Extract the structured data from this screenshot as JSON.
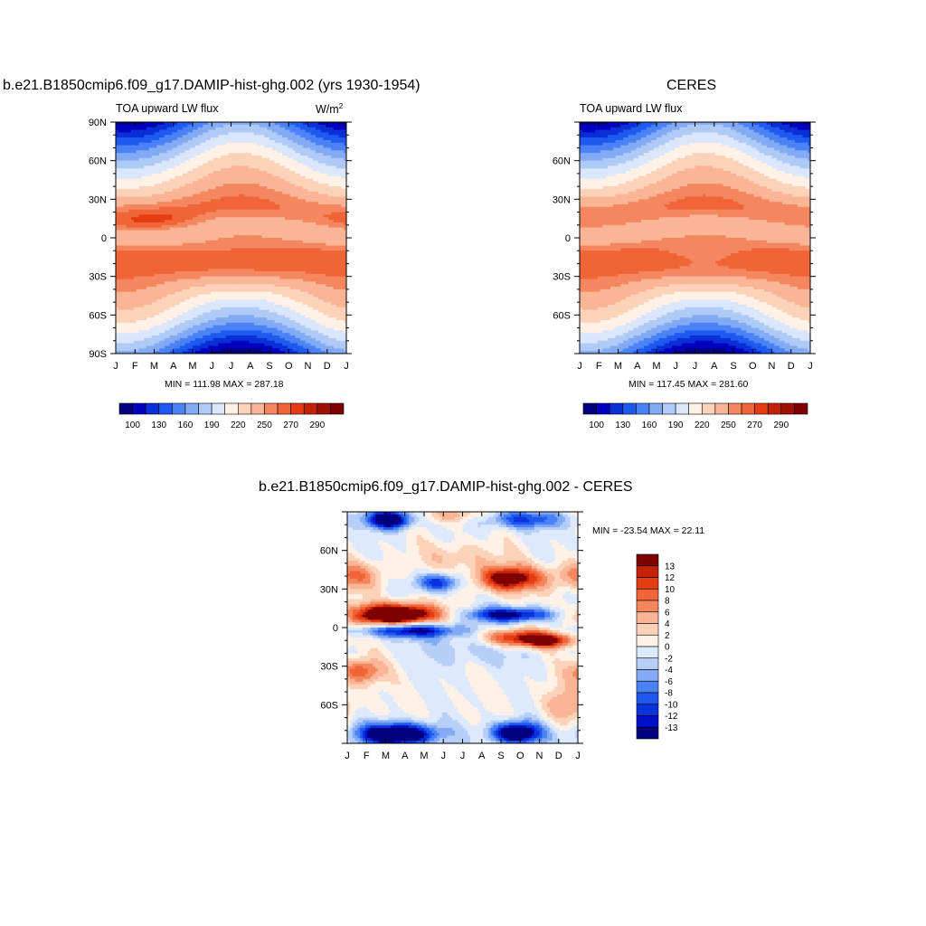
{
  "colors": {
    "seq": [
      "#00007f",
      "#0000be",
      "#0a2fd7",
      "#1e5af0",
      "#4b82f5",
      "#82aaf5",
      "#afcaf7",
      "#dae6fb",
      "#fff1e6",
      "#fcd2b9",
      "#fab496",
      "#f5875f",
      "#f06437",
      "#e63c14",
      "#c32305",
      "#a01000",
      "#7f0000"
    ],
    "div": [
      "#00007f",
      "#0010c8",
      "#0a32df",
      "#2058ee",
      "#4b82f5",
      "#82aaf5",
      "#b7cff8",
      "#dde9fc",
      "#fff1e6",
      "#fcd2b9",
      "#fab496",
      "#f5875f",
      "#f06437",
      "#e63c14",
      "#c32305",
      "#7f0000"
    ]
  },
  "panels": {
    "model": {
      "title": "b.e21.B1850cmip6.f09_g17.DAMIP-hist-ghg.002 (yrs 1930-1954)",
      "left_label": "TOA upward LW flux",
      "units": "W/m",
      "units_sup": "2",
      "stats": "MIN = 111.98 MAX = 287.18"
    },
    "obs": {
      "title": "CERES",
      "left_label": "TOA upward LW flux",
      "stats": "MIN = 117.45 MAX = 281.60"
    },
    "diff": {
      "title": "b.e21.B1850cmip6.f09_g17.DAMIP-hist-ghg.002 - CERES",
      "stats": "MIN = -23.54 MAX =  22.11"
    }
  },
  "axes": {
    "months": [
      "J",
      "F",
      "M",
      "A",
      "M",
      "J",
      "J",
      "A",
      "S",
      "O",
      "N",
      "D",
      "J"
    ],
    "lat_labels_full": [
      "90N",
      "60N",
      "30N",
      "0",
      "30S",
      "60S",
      "90S"
    ],
    "lat_labels_short": [
      "60N",
      "30N",
      "0",
      "30S",
      "60S"
    ]
  },
  "colorbar_abs": {
    "labels": [
      "100",
      "130",
      "160",
      "190",
      "220",
      "250",
      "270",
      "290"
    ]
  },
  "colorbar_diff": {
    "labels": [
      "13",
      "12",
      "10",
      "8",
      "6",
      "4",
      "2",
      "0",
      "-2",
      "-4",
      "-6",
      "-8",
      "-10",
      "-12",
      "-13"
    ]
  },
  "chart_data": [
    {
      "type": "heatmap",
      "title": "b.e21.B1850cmip6.f09_g17.DAMIP-hist-ghg.002 (yrs 1930-1954)",
      "left_label": "TOA upward LW flux",
      "units": "W/m2",
      "x_categories": [
        "J",
        "F",
        "M",
        "A",
        "M",
        "J",
        "J",
        "A",
        "S",
        "O",
        "N",
        "D",
        "J"
      ],
      "y_range": [
        -90,
        90
      ],
      "y_ticks": [
        "90N",
        "60N",
        "30N",
        "0",
        "30S",
        "60S",
        "90S"
      ],
      "min": 111.98,
      "max": 287.18,
      "levels": [
        100,
        130,
        160,
        190,
        220,
        250,
        270,
        290
      ],
      "features": [
        {
          "lat": 18,
          "month": "Mar",
          "value": 285
        },
        {
          "lat": -15,
          "month": "Jul",
          "value": 287
        },
        {
          "lat": -85,
          "month": "Jul",
          "value": 112
        },
        {
          "lat": 85,
          "month": "Jan",
          "value": 170
        }
      ]
    },
    {
      "type": "heatmap",
      "title": "CERES",
      "left_label": "TOA upward LW flux",
      "x_categories": [
        "J",
        "F",
        "M",
        "A",
        "M",
        "J",
        "J",
        "A",
        "S",
        "O",
        "N",
        "D",
        "J"
      ],
      "y_range": [
        -90,
        90
      ],
      "y_ticks": [
        "60N",
        "30N",
        "0",
        "30S",
        "60S"
      ],
      "min": 117.45,
      "max": 281.6,
      "levels": [
        100,
        130,
        160,
        190,
        220,
        250,
        270,
        290
      ],
      "features": [
        {
          "lat": 20,
          "month": "Jan",
          "value": 280
        },
        {
          "lat": -15,
          "month": "Jul",
          "value": 281
        },
        {
          "lat": -85,
          "month": "Jul",
          "value": 118
        },
        {
          "lat": 85,
          "month": "Jan",
          "value": 175
        }
      ]
    },
    {
      "type": "heatmap",
      "title": "b.e21.B1850cmip6.f09_g17.DAMIP-hist-ghg.002 - CERES",
      "x_categories": [
        "J",
        "F",
        "M",
        "A",
        "M",
        "J",
        "J",
        "A",
        "S",
        "O",
        "N",
        "D",
        "J"
      ],
      "y_range": [
        -90,
        90
      ],
      "y_ticks": [
        "60N",
        "30N",
        "0",
        "30S",
        "60S"
      ],
      "min": -23.54,
      "max": 22.11,
      "levels": [
        -13,
        -12,
        -10,
        -8,
        -6,
        -4,
        -2,
        0,
        2,
        4,
        6,
        8,
        10,
        12,
        13
      ],
      "features": [
        {
          "lat": 10,
          "month": "Mar",
          "value": 22
        },
        {
          "lat": 38,
          "month": "Aug",
          "value": 15
        },
        {
          "lat": -8,
          "month": "Sep",
          "value": 14
        },
        {
          "lat": -83,
          "month": "Apr",
          "value": -22
        },
        {
          "lat": 83,
          "month": "Mar",
          "value": -20
        },
        {
          "lat": 10,
          "month": "Sep",
          "value": -15
        }
      ]
    }
  ]
}
